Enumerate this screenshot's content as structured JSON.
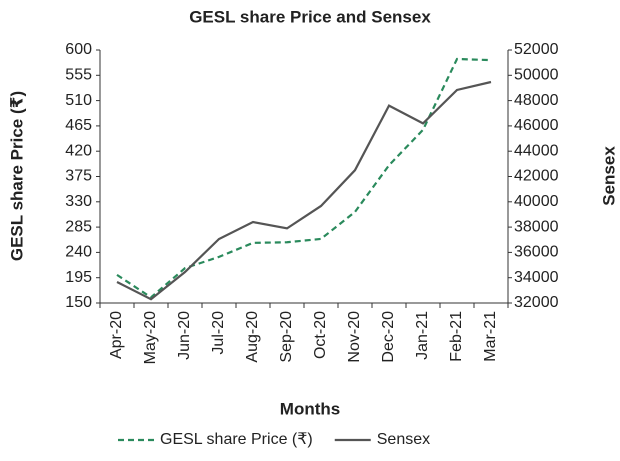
{
  "chart_data": {
    "type": "line",
    "title": "GESL share Price and Sensex",
    "x_label": "Months",
    "y_label": "GESL share Price (₹)",
    "y2_label": "Sensex",
    "categories": [
      "Apr-20",
      "May-20",
      "Jun-20",
      "Jul-20",
      "Aug-20",
      "Sep-20",
      "Oct-20",
      "Nov-20",
      "Dec-20",
      "Jan-21",
      "Feb-21",
      "Mar-21"
    ],
    "ylim": [
      150,
      600
    ],
    "yticks": [
      150,
      195,
      240,
      285,
      330,
      375,
      420,
      465,
      510,
      555,
      600
    ],
    "y2lim": [
      32000,
      52000
    ],
    "y2ticks": [
      32000,
      34000,
      36000,
      38000,
      40000,
      42000,
      44000,
      46000,
      48000,
      50000,
      52000
    ],
    "legend": "bottom",
    "series": [
      {
        "name": "GESL share Price (₹)",
        "color": "#2a8a5c",
        "dashed": true,
        "values": [
          200,
          160,
          212,
          232,
          257,
          258,
          264,
          312,
          395,
          458,
          584,
          582
        ]
      },
      {
        "name": "Sensex",
        "color": "#555555",
        "axis": "y2",
        "values": [
          33660,
          32300,
          34450,
          37060,
          38400,
          37900,
          39670,
          42500,
          47600,
          46200,
          48840,
          49470
        ]
      }
    ]
  }
}
